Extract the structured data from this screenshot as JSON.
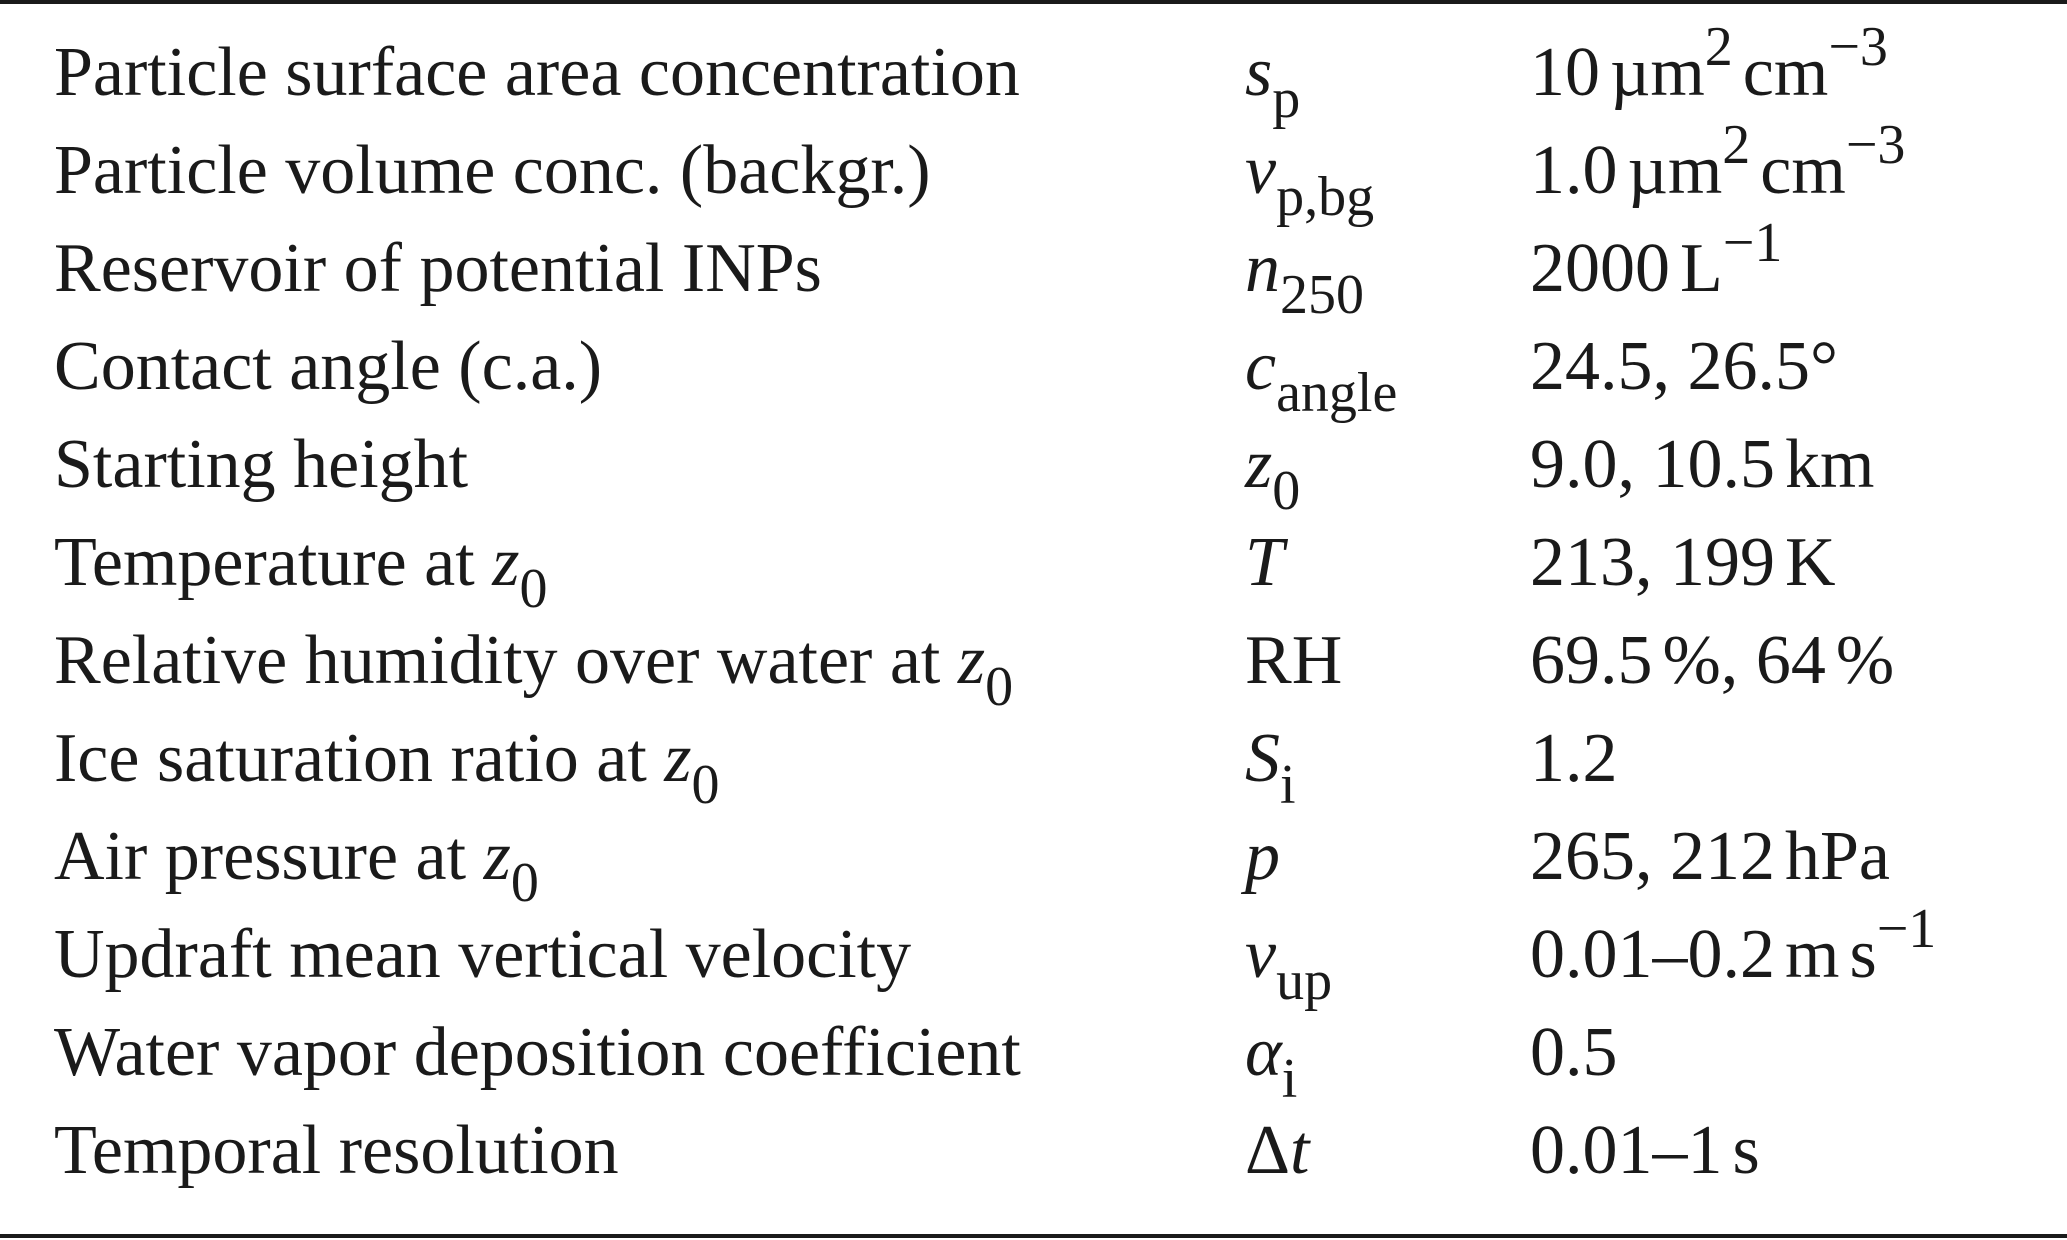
{
  "table": {
    "rows": [
      {
        "parameter": "Particle surface area concentration",
        "symbol": {
          "main": "s",
          "sub": "p"
        },
        "value": {
          "num": "10",
          "unit1": "µm",
          "exp1": "2",
          "unit2": "cm",
          "exp2": "−3"
        }
      },
      {
        "parameter": "Particle volume conc. (backgr.)",
        "symbol": {
          "main": "v",
          "sub": "p,bg"
        },
        "value": {
          "num": "1.0",
          "unit1": "µm",
          "exp1": "2",
          "unit2": "cm",
          "exp2": "−3"
        }
      },
      {
        "parameter": "Reservoir of potential INPs",
        "symbol": {
          "main": "n",
          "sub": "250"
        },
        "value": {
          "num": "2000",
          "unit": "L",
          "exp": "−1"
        }
      },
      {
        "parameter": "Contact angle (c.a.)",
        "symbol": {
          "main": "c",
          "sub": "angle"
        },
        "value": {
          "text": "24.5, 26.5°"
        }
      },
      {
        "parameter": "Starting height",
        "symbol": {
          "main": "z",
          "sub": "0"
        },
        "value": {
          "num": "9.0, 10.5",
          "unit": "km"
        }
      },
      {
        "parameter": "Temperature at",
        "param_var": {
          "main": "z",
          "sub": "0"
        },
        "symbol": {
          "main": "T"
        },
        "value": {
          "num": "213, 199",
          "unit": "K"
        }
      },
      {
        "parameter": "Relative humidity over water at",
        "param_var": {
          "main": "z",
          "sub": "0"
        },
        "symbol": {
          "text": "RH"
        },
        "value": {
          "part1": "69.5",
          "pct1": "%,",
          "part2": "64",
          "pct2": "%"
        }
      },
      {
        "parameter": "Ice saturation ratio at",
        "param_var": {
          "main": "z",
          "sub": "0"
        },
        "symbol": {
          "main": "S",
          "sub": "i"
        },
        "value": {
          "text": "1.2"
        }
      },
      {
        "parameter": "Air pressure at",
        "param_var": {
          "main": "z",
          "sub": "0"
        },
        "symbol": {
          "main": "p"
        },
        "value": {
          "num": "265, 212",
          "unit": "hPa"
        }
      },
      {
        "parameter": "Updraft mean vertical velocity",
        "symbol": {
          "main": "v",
          "sub": "up"
        },
        "value": {
          "num": "0.01–0.2",
          "unit1": "m",
          "unit2": "s",
          "exp": "−1"
        }
      },
      {
        "parameter": "Water vapor deposition coefficient",
        "symbol": {
          "main": "α",
          "sub": "i"
        },
        "value": {
          "text": "0.5"
        }
      },
      {
        "parameter": "Temporal resolution",
        "symbol": {
          "prefix": "Δ",
          "main": "t"
        },
        "value": {
          "num": "0.01–1",
          "unit": "s"
        }
      }
    ]
  }
}
